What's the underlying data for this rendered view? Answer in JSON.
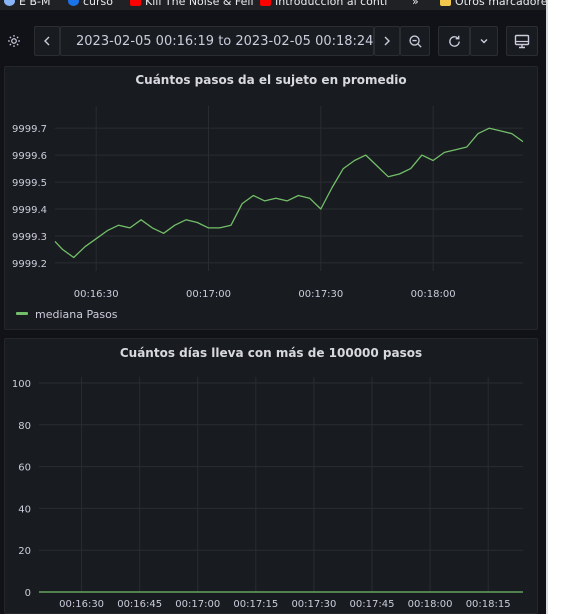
{
  "bookmarks": [
    {
      "label": "E B-M",
      "color": "#8ab4f8"
    },
    {
      "label": "curso",
      "color": "#1a73e8"
    },
    {
      "label": "Kill The Noise & Feli",
      "color": "#ff0000"
    },
    {
      "label": "Introducción al conti",
      "color": "#ff0000"
    },
    {
      "label": "»",
      "color": ""
    },
    {
      "label": "Otros marcadores",
      "color": "#f2c94c"
    }
  ],
  "toolbar": {
    "settings_icon": "gear-icon",
    "time_range": "2023-02-05 00:16:19 to 2023-02-05 00:18:24",
    "clock_icon": "clock-icon",
    "prev_icon": "chevron-left-icon",
    "next_icon": "chevron-right-icon",
    "zoom_icon": "zoom-out-icon",
    "refresh_icon": "refresh-icon",
    "refresh_menu_icon": "chevron-down-icon",
    "tv_icon": "monitor-icon"
  },
  "colors": {
    "series": "#73bf69",
    "background": "#111217",
    "panel": "#181b1f",
    "grid": "#2a2c31"
  },
  "chart_data": [
    {
      "type": "line",
      "title": "Cuántos pasos da el sujeto en promedio",
      "y_ticks": [
        "9999.2",
        "9999.3",
        "9999.4",
        "9999.5",
        "9999.6",
        "9999.7"
      ],
      "x_ticks": [
        "00:16:30",
        "00:17:00",
        "00:17:30",
        "00:18:00"
      ],
      "ylim": [
        9999.17,
        9999.76
      ],
      "grid": true,
      "legend": "bottom-left",
      "series": [
        {
          "name": "mediana Pasos",
          "x": [
            "00:16:19",
            "00:16:21",
            "00:16:24",
            "00:16:27",
            "00:16:30",
            "00:16:33",
            "00:16:36",
            "00:16:39",
            "00:16:42",
            "00:16:45",
            "00:16:48",
            "00:16:51",
            "00:16:54",
            "00:16:57",
            "00:17:00",
            "00:17:03",
            "00:17:06",
            "00:17:09",
            "00:17:12",
            "00:17:15",
            "00:17:18",
            "00:17:21",
            "00:17:24",
            "00:17:27",
            "00:17:30",
            "00:17:33",
            "00:17:36",
            "00:17:39",
            "00:17:42",
            "00:17:45",
            "00:17:48",
            "00:17:51",
            "00:17:54",
            "00:17:57",
            "00:18:00",
            "00:18:03",
            "00:18:06",
            "00:18:09",
            "00:18:12",
            "00:18:15",
            "00:18:18",
            "00:18:21",
            "00:18:24"
          ],
          "values": [
            9999.28,
            9999.25,
            9999.22,
            9999.26,
            9999.29,
            9999.32,
            9999.34,
            9999.33,
            9999.36,
            9999.33,
            9999.31,
            9999.34,
            9999.36,
            9999.35,
            9999.33,
            9999.33,
            9999.34,
            9999.42,
            9999.45,
            9999.43,
            9999.44,
            9999.43,
            9999.45,
            9999.44,
            9999.4,
            9999.48,
            9999.55,
            9999.58,
            9999.6,
            9999.56,
            9999.52,
            9999.53,
            9999.55,
            9999.6,
            9999.58,
            9999.61,
            9999.62,
            9999.63,
            9999.68,
            9999.7,
            9999.69,
            9999.68,
            9999.65
          ]
        }
      ]
    },
    {
      "type": "line",
      "title": "Cuántos días lleva con más de 100000 pasos",
      "y_ticks": [
        "0",
        "20",
        "40",
        "60",
        "80",
        "100"
      ],
      "x_ticks": [
        "00:16:30",
        "00:16:45",
        "00:17:00",
        "00:17:15",
        "00:17:30",
        "00:17:45",
        "00:18:00",
        "00:18:15"
      ],
      "ylim": [
        0,
        100
      ],
      "grid": true,
      "series": [
        {
          "x": [
            "00:16:19",
            "00:18:24"
          ],
          "values": [
            0,
            0
          ]
        }
      ]
    }
  ]
}
